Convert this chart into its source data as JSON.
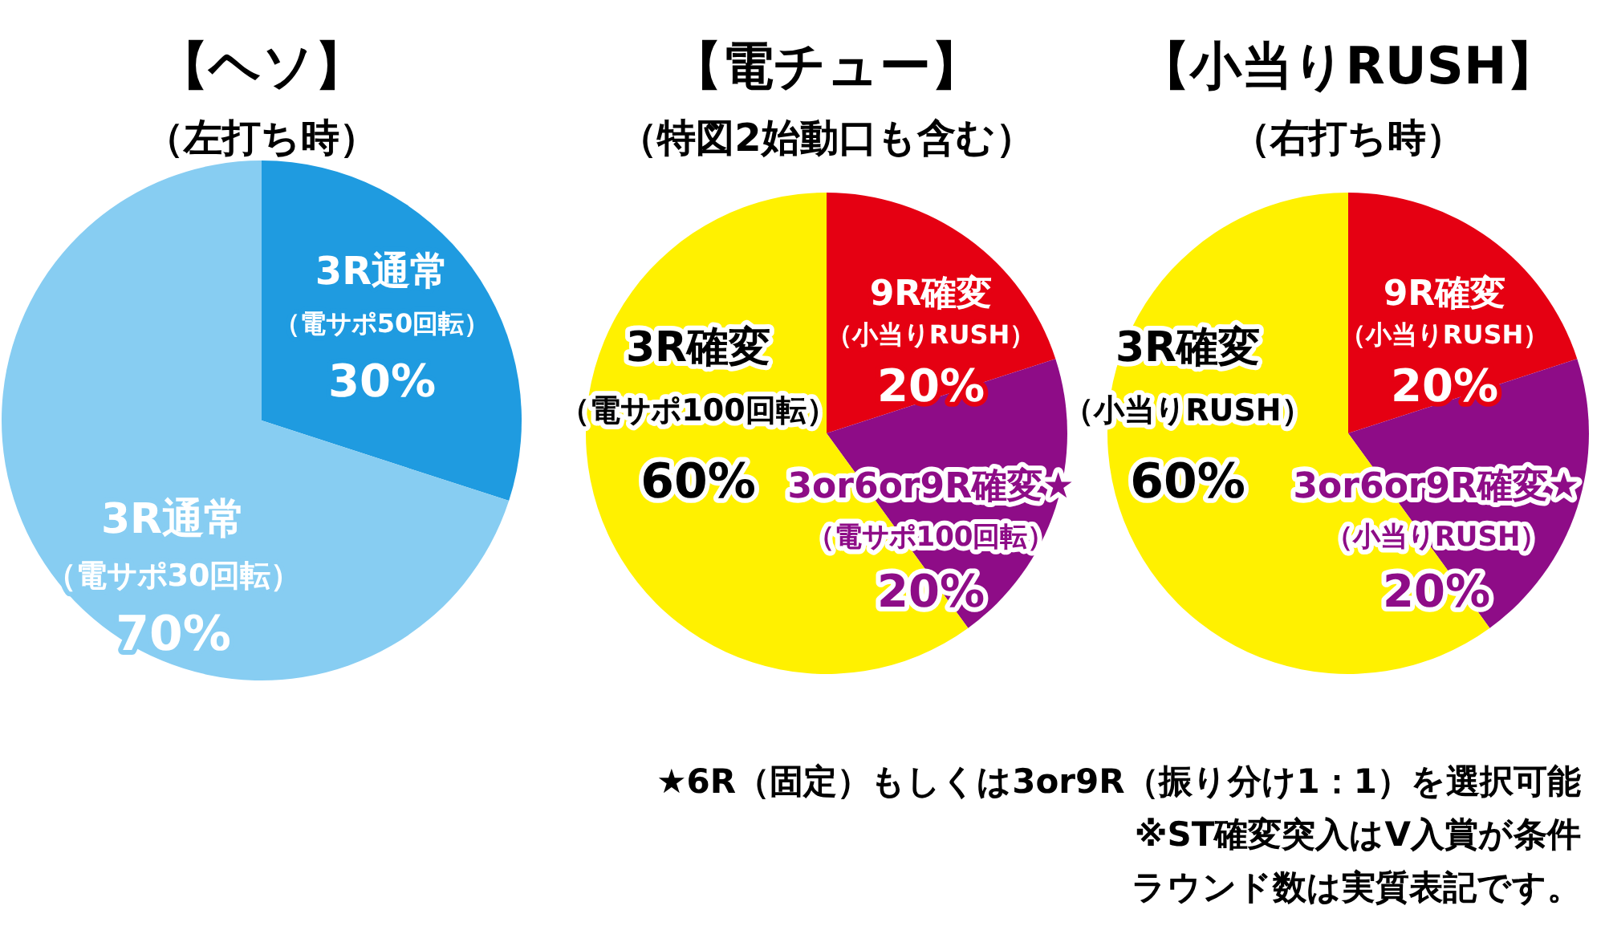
{
  "chart_data": [
    {
      "type": "pie",
      "title": "【ヘソ】",
      "subtitle": "（左打ち時）",
      "categories": [
        "3R通常（電サポ50回転）",
        "3R通常（電サポ30回転）"
      ],
      "values": [
        30,
        70
      ],
      "colors": [
        "#1f9be0",
        "#87cdf2"
      ],
      "value_labels": [
        "30%",
        "70%"
      ]
    },
    {
      "type": "pie",
      "title": "【電チュー】",
      "subtitle": "（特図2始動口も含む）",
      "categories": [
        "9R確変（小当りRUSH）",
        "3or6or9R確変★（電サポ100回転）",
        "3R確変（電サポ100回転）"
      ],
      "values": [
        20,
        20,
        60
      ],
      "colors": [
        "#e50012",
        "#8e0c87",
        "#fff100"
      ],
      "value_labels": [
        "20%",
        "20%",
        "60%"
      ]
    },
    {
      "type": "pie",
      "title": "【小当りRUSH】",
      "subtitle": "（右打ち時）",
      "categories": [
        "9R確変（小当りRUSH）",
        "3or6or9R確変★（小当りRUSH）",
        "3R確変（小当りRUSH）"
      ],
      "values": [
        20,
        20,
        60
      ],
      "colors": [
        "#e50012",
        "#8e0c87",
        "#fff100"
      ],
      "value_labels": [
        "20%",
        "20%",
        "60%"
      ],
      "annotations": [
        "★6R（固定）もしくは3or9R（振り分け1：1）を選択可能",
        "※ST確変突入はV入賞が条件",
        "ラウンド数は実質表記です。"
      ]
    }
  ]
}
